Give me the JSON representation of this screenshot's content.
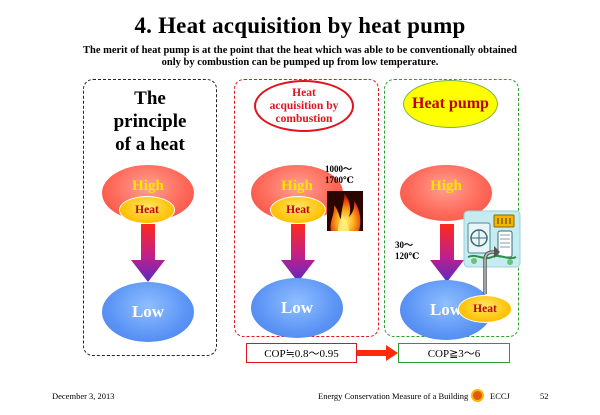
{
  "title": "4.  Heat acquisition by heat pump",
  "subtitle": {
    "line1": "The merit of heat pump is at the point that the heat which was able to be conventionally obtained",
    "line2": "only by combustion can be pumped up from low temperature."
  },
  "principle": {
    "lines": [
      "The",
      "principle",
      "of a heat"
    ],
    "high": "High",
    "heat": "Heat",
    "low": "Low"
  },
  "combustion": {
    "label_lines": [
      "Heat",
      "acquisition by",
      "combustion"
    ],
    "temp_lines": [
      "1000～",
      "1700℃"
    ],
    "high": "High",
    "heat": "Heat",
    "low": "Low",
    "cop": "COP≒0.8～0.95"
  },
  "heatpump": {
    "label": "Heat pump",
    "temp_lines": [
      "30～",
      "120℃"
    ],
    "high": "High",
    "heat": "Heat",
    "low": "Low",
    "cop": "COP≧3～6"
  },
  "footer": {
    "date": "December 3, 2013",
    "center": "Energy Conservation Measure of a Building",
    "org": "ECCJ",
    "page": "52"
  },
  "colors": {
    "red": "#e0141e",
    "green": "#2a9e2a",
    "high_fill": "#ff6a5a",
    "low_fill": "#5b94f5",
    "heat_fill": "#ffc000",
    "hp_label_fill": "#ffff00",
    "text_yellow": "#ffe600"
  },
  "icons": [
    "flame-icon",
    "heat-pump-icon",
    "eccj-logo-icon"
  ]
}
